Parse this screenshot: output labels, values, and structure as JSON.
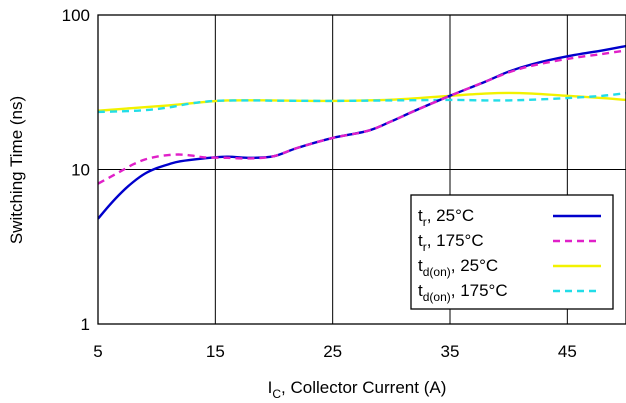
{
  "chart_data": {
    "type": "line",
    "xlabel_main": "I",
    "xlabel_sub": "C",
    "xlabel_rest": ", Collector Current (A)",
    "ylabel": "Switching Time (ns)",
    "xlim": [
      5,
      50
    ],
    "ylim": [
      1,
      100
    ],
    "y_scale": "log",
    "grid": true,
    "legend_position": "bottom-right",
    "x_ticks": [
      5,
      15,
      25,
      35,
      45
    ],
    "x_tick_labels": [
      "5",
      "15",
      "25",
      "35",
      "45"
    ],
    "y_ticks": [
      1,
      10,
      100
    ],
    "y_tick_labels": [
      "1",
      "10",
      "100"
    ],
    "series": [
      {
        "name": "tr, 25°C",
        "legend_main": "t",
        "legend_sub": "r",
        "legend_rest": ", 25°C",
        "color": "#0000cc",
        "dash": "solid",
        "x": [
          5,
          6,
          7,
          8,
          9,
          10,
          11,
          12,
          14,
          16,
          18,
          20,
          22,
          25,
          28,
          30,
          32,
          35,
          38,
          40,
          42,
          45,
          48,
          50
        ],
        "y": [
          4.8,
          5.9,
          7.1,
          8.3,
          9.4,
          10.2,
          10.8,
          11.3,
          11.8,
          12.1,
          11.9,
          12.2,
          13.8,
          16.0,
          17.8,
          20.5,
          24.0,
          30.0,
          37.0,
          43.0,
          48.0,
          54.0,
          59.0,
          63.0
        ]
      },
      {
        "name": "tr, 175°C",
        "legend_main": "t",
        "legend_sub": "r",
        "legend_rest": ", 175°C",
        "color": "#e020c8",
        "dash": "dashed",
        "x": [
          5,
          6,
          7,
          8,
          9,
          10,
          11,
          12,
          13,
          14,
          16,
          18,
          20,
          22,
          25,
          28,
          30,
          32,
          35,
          38,
          40,
          42,
          45,
          48,
          50
        ],
        "y": [
          8.1,
          8.9,
          9.8,
          10.8,
          11.6,
          12.1,
          12.4,
          12.5,
          12.3,
          12.0,
          11.9,
          11.8,
          12.2,
          13.8,
          16.0,
          17.8,
          20.5,
          24.0,
          30.0,
          37.0,
          42.5,
          47.0,
          52.0,
          56.0,
          59.0
        ]
      },
      {
        "name": "td(on), 25°C",
        "legend_main": "t",
        "legend_sub": "d(on)",
        "legend_rest": ", 25°C",
        "color": "#f2f200",
        "dash": "solid",
        "x": [
          5,
          8,
          11,
          14,
          16,
          20,
          25,
          30,
          35,
          38,
          40,
          42,
          45,
          48,
          50
        ],
        "y": [
          24.0,
          25.0,
          26.0,
          27.3,
          28.0,
          28.0,
          27.8,
          28.3,
          30.0,
          31.0,
          31.3,
          31.0,
          30.0,
          29.0,
          28.2
        ]
      },
      {
        "name": "td(on), 175°C",
        "legend_main": "t",
        "legend_sub": "d(on)",
        "legend_rest": ", 175°C",
        "color": "#22dde8",
        "dash": "dashed",
        "x": [
          5,
          7,
          9,
          11,
          13,
          15,
          18,
          20,
          25,
          30,
          35,
          38,
          40,
          42,
          45,
          48,
          50
        ],
        "y": [
          23.6,
          23.8,
          24.2,
          25.2,
          26.8,
          27.8,
          28.0,
          27.9,
          27.8,
          28.0,
          28.2,
          28.0,
          28.0,
          28.3,
          29.0,
          30.0,
          31.2
        ]
      }
    ]
  }
}
